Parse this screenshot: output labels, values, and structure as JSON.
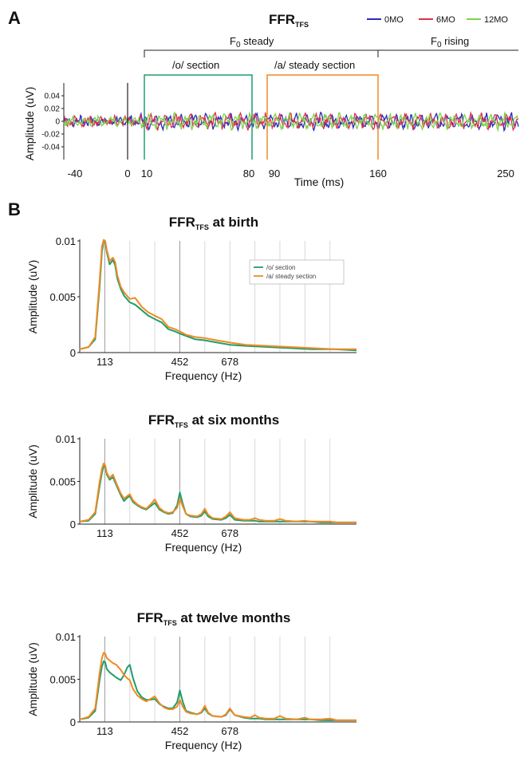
{
  "panel_a": {
    "letter": "A",
    "title_main": "FFR",
    "title_sub": "TFS",
    "legend": [
      {
        "label": "0MO",
        "color": "#2b2bb8"
      },
      {
        "label": "6MO",
        "color": "#e0304a"
      },
      {
        "label": "12MO",
        "color": "#7bd44a"
      }
    ],
    "f0_steady_main": "F",
    "f0_steady_sub": "0",
    "f0_steady_rest": " steady",
    "f0_rising_main": "F",
    "f0_rising_sub": "0",
    "f0_rising_rest": " rising",
    "o_section_label": "/o/ section",
    "a_section_label": "/a/ steady section",
    "o_section_color": "#1f9e6a",
    "a_section_color": "#f08a24",
    "ylabel": "Amplitude (uV)",
    "xlabel": "Time (ms)"
  },
  "panel_b": {
    "letter": "B"
  },
  "chart_data": [
    {
      "type": "line",
      "title": "FFR TFS",
      "xlabel": "Time (ms)",
      "ylabel": "Amplitude (uV)",
      "xlim": [
        -50,
        250
      ],
      "ylim": [
        -0.055,
        0.055
      ],
      "xticks": [
        -40,
        0,
        10,
        80,
        90,
        160,
        250
      ],
      "yticks": [
        0.04,
        0.02,
        0,
        -0.02,
        -0.04
      ],
      "ytick_labels": [
        "0.04",
        "0.02",
        "0",
        "-0.02",
        "-0.04"
      ],
      "series": [
        {
          "name": "0MO",
          "color": "#2b2bb8"
        },
        {
          "name": "6MO",
          "color": "#e0304a"
        },
        {
          "name": "12MO",
          "color": "#7bd44a"
        }
      ],
      "markers": [
        0,
        10,
        80,
        90,
        160
      ],
      "regions": [
        {
          "label": "F0 steady",
          "from": 10,
          "to": 160
        },
        {
          "label": "F0 rising",
          "from": 160,
          "to": 250
        },
        {
          "label": "/o/ section",
          "from": 10,
          "to": 80
        },
        {
          "label": "/a/ steady section",
          "from": 90,
          "to": 160
        }
      ]
    },
    {
      "type": "line",
      "title": "FFR TFS at birth",
      "title_main": "FFR",
      "title_sub": "TFS",
      "title_rest": " at birth",
      "xlabel": "Frequency (Hz)",
      "ylabel": "Amplitude (uV)",
      "xlim": [
        0,
        1250
      ],
      "ylim": [
        0,
        0.01
      ],
      "xticks": [
        113,
        452,
        678
      ],
      "yticks": [
        0,
        0.005,
        0.01
      ],
      "ytick_labels": [
        "0",
        "0.005",
        "0.01"
      ],
      "harmonics": [
        113,
        226,
        339,
        452,
        565,
        678,
        791,
        904,
        1017,
        1130
      ],
      "legend": [
        "/o/ section",
        "/a/ steady section"
      ],
      "series": [
        {
          "name": "/o/ section",
          "color": "#1f9e6a",
          "x": [
            0,
            40,
            70,
            90,
            100,
            108,
            115,
            122,
            135,
            150,
            160,
            170,
            185,
            200,
            226,
            250,
            280,
            310,
            339,
            370,
            400,
            430,
            452,
            480,
            520,
            565,
            620,
            678,
            750,
            850,
            950,
            1050,
            1150,
            1250
          ],
          "y": [
            0.0003,
            0.0005,
            0.0012,
            0.006,
            0.009,
            0.01,
            0.0099,
            0.009,
            0.0079,
            0.0083,
            0.0078,
            0.0066,
            0.0057,
            0.0051,
            0.0045,
            0.0043,
            0.0038,
            0.0033,
            0.003,
            0.0027,
            0.0021,
            0.0019,
            0.0017,
            0.0015,
            0.0012,
            0.0011,
            0.0009,
            0.0007,
            0.0006,
            0.0005,
            0.0004,
            0.0003,
            0.0003,
            0.0002
          ]
        },
        {
          "name": "/a/ steady section",
          "color": "#f08a24",
          "x": [
            0,
            40,
            70,
            90,
            100,
            108,
            115,
            122,
            135,
            150,
            160,
            170,
            185,
            200,
            226,
            250,
            280,
            310,
            339,
            370,
            400,
            430,
            452,
            480,
            520,
            565,
            620,
            678,
            750,
            850,
            950,
            1050,
            1150,
            1250
          ],
          "y": [
            0.0003,
            0.0005,
            0.0014,
            0.0065,
            0.0095,
            0.0101,
            0.01,
            0.0092,
            0.0082,
            0.0085,
            0.0081,
            0.0069,
            0.0059,
            0.0054,
            0.0048,
            0.0049,
            0.0041,
            0.0036,
            0.0033,
            0.003,
            0.0023,
            0.0021,
            0.0019,
            0.0016,
            0.0014,
            0.0013,
            0.0011,
            0.0009,
            0.0007,
            0.0006,
            0.0005,
            0.0004,
            0.0003,
            0.0003
          ]
        }
      ]
    },
    {
      "type": "line",
      "title": "FFR TFS at six months",
      "title_main": "FFR",
      "title_sub": "TFS",
      "title_rest": " at six months",
      "xlabel": "Frequency (Hz)",
      "ylabel": "Amplitude (uV)",
      "xlim": [
        0,
        1250
      ],
      "ylim": [
        0,
        0.01
      ],
      "xticks": [
        113,
        452,
        678
      ],
      "yticks": [
        0,
        0.005,
        0.01
      ],
      "ytick_labels": [
        "0",
        "0.005",
        "0.01"
      ],
      "harmonics": [
        113,
        226,
        339,
        452,
        565,
        678,
        791,
        904,
        1017,
        1130
      ],
      "series": [
        {
          "name": "/o/ section",
          "color": "#1f9e6a",
          "x": [
            0,
            40,
            70,
            90,
            100,
            108,
            115,
            122,
            135,
            150,
            165,
            185,
            200,
            215,
            226,
            240,
            260,
            280,
            300,
            320,
            339,
            360,
            380,
            400,
            420,
            440,
            452,
            465,
            480,
            500,
            530,
            550,
            565,
            580,
            600,
            640,
            660,
            678,
            700,
            740,
            770,
            791,
            810,
            840,
            880,
            904,
            930,
            980,
            1017,
            1040,
            1090,
            1130,
            1160,
            1250
          ],
          "y": [
            0.0003,
            0.0004,
            0.0012,
            0.0045,
            0.006,
            0.0068,
            0.0067,
            0.0058,
            0.0052,
            0.0055,
            0.0046,
            0.0034,
            0.0027,
            0.0031,
            0.0033,
            0.0026,
            0.0022,
            0.0019,
            0.0017,
            0.0021,
            0.0025,
            0.0017,
            0.0014,
            0.0012,
            0.0013,
            0.0022,
            0.0037,
            0.0024,
            0.0012,
            0.0009,
            0.0008,
            0.001,
            0.0015,
            0.0009,
            0.0006,
            0.0005,
            0.0007,
            0.0011,
            0.0005,
            0.0004,
            0.0004,
            0.0004,
            0.0003,
            0.0003,
            0.0003,
            0.0003,
            0.0003,
            0.0003,
            0.0003,
            0.0003,
            0.0002,
            0.0002,
            0.0002,
            0.0002
          ]
        },
        {
          "name": "/a/ steady section",
          "color": "#f08a24",
          "x": [
            0,
            40,
            70,
            90,
            100,
            108,
            115,
            122,
            135,
            150,
            165,
            185,
            200,
            215,
            226,
            240,
            260,
            280,
            300,
            320,
            339,
            360,
            380,
            400,
            420,
            440,
            452,
            465,
            480,
            500,
            530,
            550,
            565,
            580,
            600,
            640,
            660,
            678,
            700,
            740,
            770,
            791,
            810,
            840,
            880,
            904,
            930,
            980,
            1017,
            1040,
            1090,
            1130,
            1160,
            1250
          ],
          "y": [
            0.0003,
            0.0005,
            0.0014,
            0.005,
            0.0065,
            0.0071,
            0.0069,
            0.006,
            0.0054,
            0.0058,
            0.0048,
            0.0036,
            0.003,
            0.0033,
            0.0035,
            0.0028,
            0.0023,
            0.002,
            0.0018,
            0.0023,
            0.0029,
            0.0019,
            0.0015,
            0.0013,
            0.0014,
            0.0019,
            0.003,
            0.0021,
            0.0012,
            0.001,
            0.0009,
            0.0012,
            0.0018,
            0.0011,
            0.0007,
            0.0006,
            0.0009,
            0.0014,
            0.0007,
            0.0005,
            0.0005,
            0.0007,
            0.0005,
            0.0004,
            0.0004,
            0.0006,
            0.0004,
            0.0003,
            0.0004,
            0.0003,
            0.0003,
            0.0003,
            0.0002,
            0.0002
          ]
        }
      ]
    },
    {
      "type": "line",
      "title": "FFR TFS at twelve months",
      "title_main": "FFR",
      "title_sub": "TFS",
      "title_rest": " at twelve months",
      "xlabel": "Frequency (Hz)",
      "ylabel": "Amplitude (uV)",
      "xlim": [
        0,
        1250
      ],
      "ylim": [
        0,
        0.01
      ],
      "xticks": [
        113,
        452,
        678
      ],
      "yticks": [
        0,
        0.005,
        0.01
      ],
      "ytick_labels": [
        "0",
        "0.005",
        "0.01"
      ],
      "harmonics": [
        113,
        226,
        339,
        452,
        565,
        678,
        791,
        904,
        1017,
        1130
      ],
      "series": [
        {
          "name": "/o/ section",
          "color": "#1f9e6a",
          "x": [
            0,
            40,
            70,
            90,
            100,
            108,
            115,
            122,
            135,
            150,
            165,
            185,
            200,
            215,
            226,
            240,
            260,
            280,
            300,
            320,
            339,
            360,
            380,
            400,
            420,
            440,
            452,
            465,
            480,
            500,
            530,
            550,
            565,
            580,
            600,
            640,
            660,
            678,
            700,
            740,
            770,
            791,
            810,
            840,
            880,
            904,
            930,
            980,
            1017,
            1040,
            1090,
            1130,
            1160,
            1250
          ],
          "y": [
            0.0003,
            0.0005,
            0.0013,
            0.005,
            0.0065,
            0.0071,
            0.007,
            0.0062,
            0.0058,
            0.0055,
            0.0052,
            0.0049,
            0.0055,
            0.0064,
            0.0067,
            0.0052,
            0.0036,
            0.0029,
            0.0026,
            0.0026,
            0.0027,
            0.0021,
            0.0018,
            0.0016,
            0.0016,
            0.0023,
            0.0037,
            0.0024,
            0.0013,
            0.0011,
            0.0009,
            0.0011,
            0.0016,
            0.001,
            0.0007,
            0.0006,
            0.0008,
            0.0015,
            0.0008,
            0.0005,
            0.0004,
            0.0004,
            0.0004,
            0.0003,
            0.0003,
            0.0003,
            0.0003,
            0.0003,
            0.0003,
            0.0003,
            0.0002,
            0.0002,
            0.0002,
            0.0002
          ]
        },
        {
          "name": "/a/ steady section",
          "color": "#f08a24",
          "x": [
            0,
            40,
            70,
            90,
            100,
            108,
            115,
            122,
            135,
            150,
            165,
            185,
            200,
            215,
            226,
            240,
            260,
            280,
            300,
            320,
            339,
            360,
            380,
            400,
            420,
            440,
            452,
            465,
            480,
            500,
            530,
            550,
            565,
            580,
            600,
            640,
            660,
            678,
            700,
            740,
            770,
            791,
            810,
            840,
            880,
            904,
            930,
            980,
            1017,
            1040,
            1090,
            1130,
            1160,
            1250
          ],
          "y": [
            0.0003,
            0.0006,
            0.0016,
            0.0058,
            0.0075,
            0.0081,
            0.008,
            0.0075,
            0.0072,
            0.0069,
            0.0067,
            0.0061,
            0.0055,
            0.0051,
            0.0049,
            0.0039,
            0.0031,
            0.0027,
            0.0024,
            0.0027,
            0.003,
            0.0022,
            0.0017,
            0.0015,
            0.0015,
            0.0018,
            0.0026,
            0.0018,
            0.0012,
            0.001,
            0.0009,
            0.0012,
            0.0019,
            0.0011,
            0.0007,
            0.0006,
            0.0009,
            0.0016,
            0.0008,
            0.0006,
            0.0005,
            0.0008,
            0.0005,
            0.0004,
            0.0004,
            0.0007,
            0.0004,
            0.0003,
            0.0005,
            0.0003,
            0.0003,
            0.0004,
            0.0002,
            0.0002
          ]
        }
      ]
    }
  ]
}
